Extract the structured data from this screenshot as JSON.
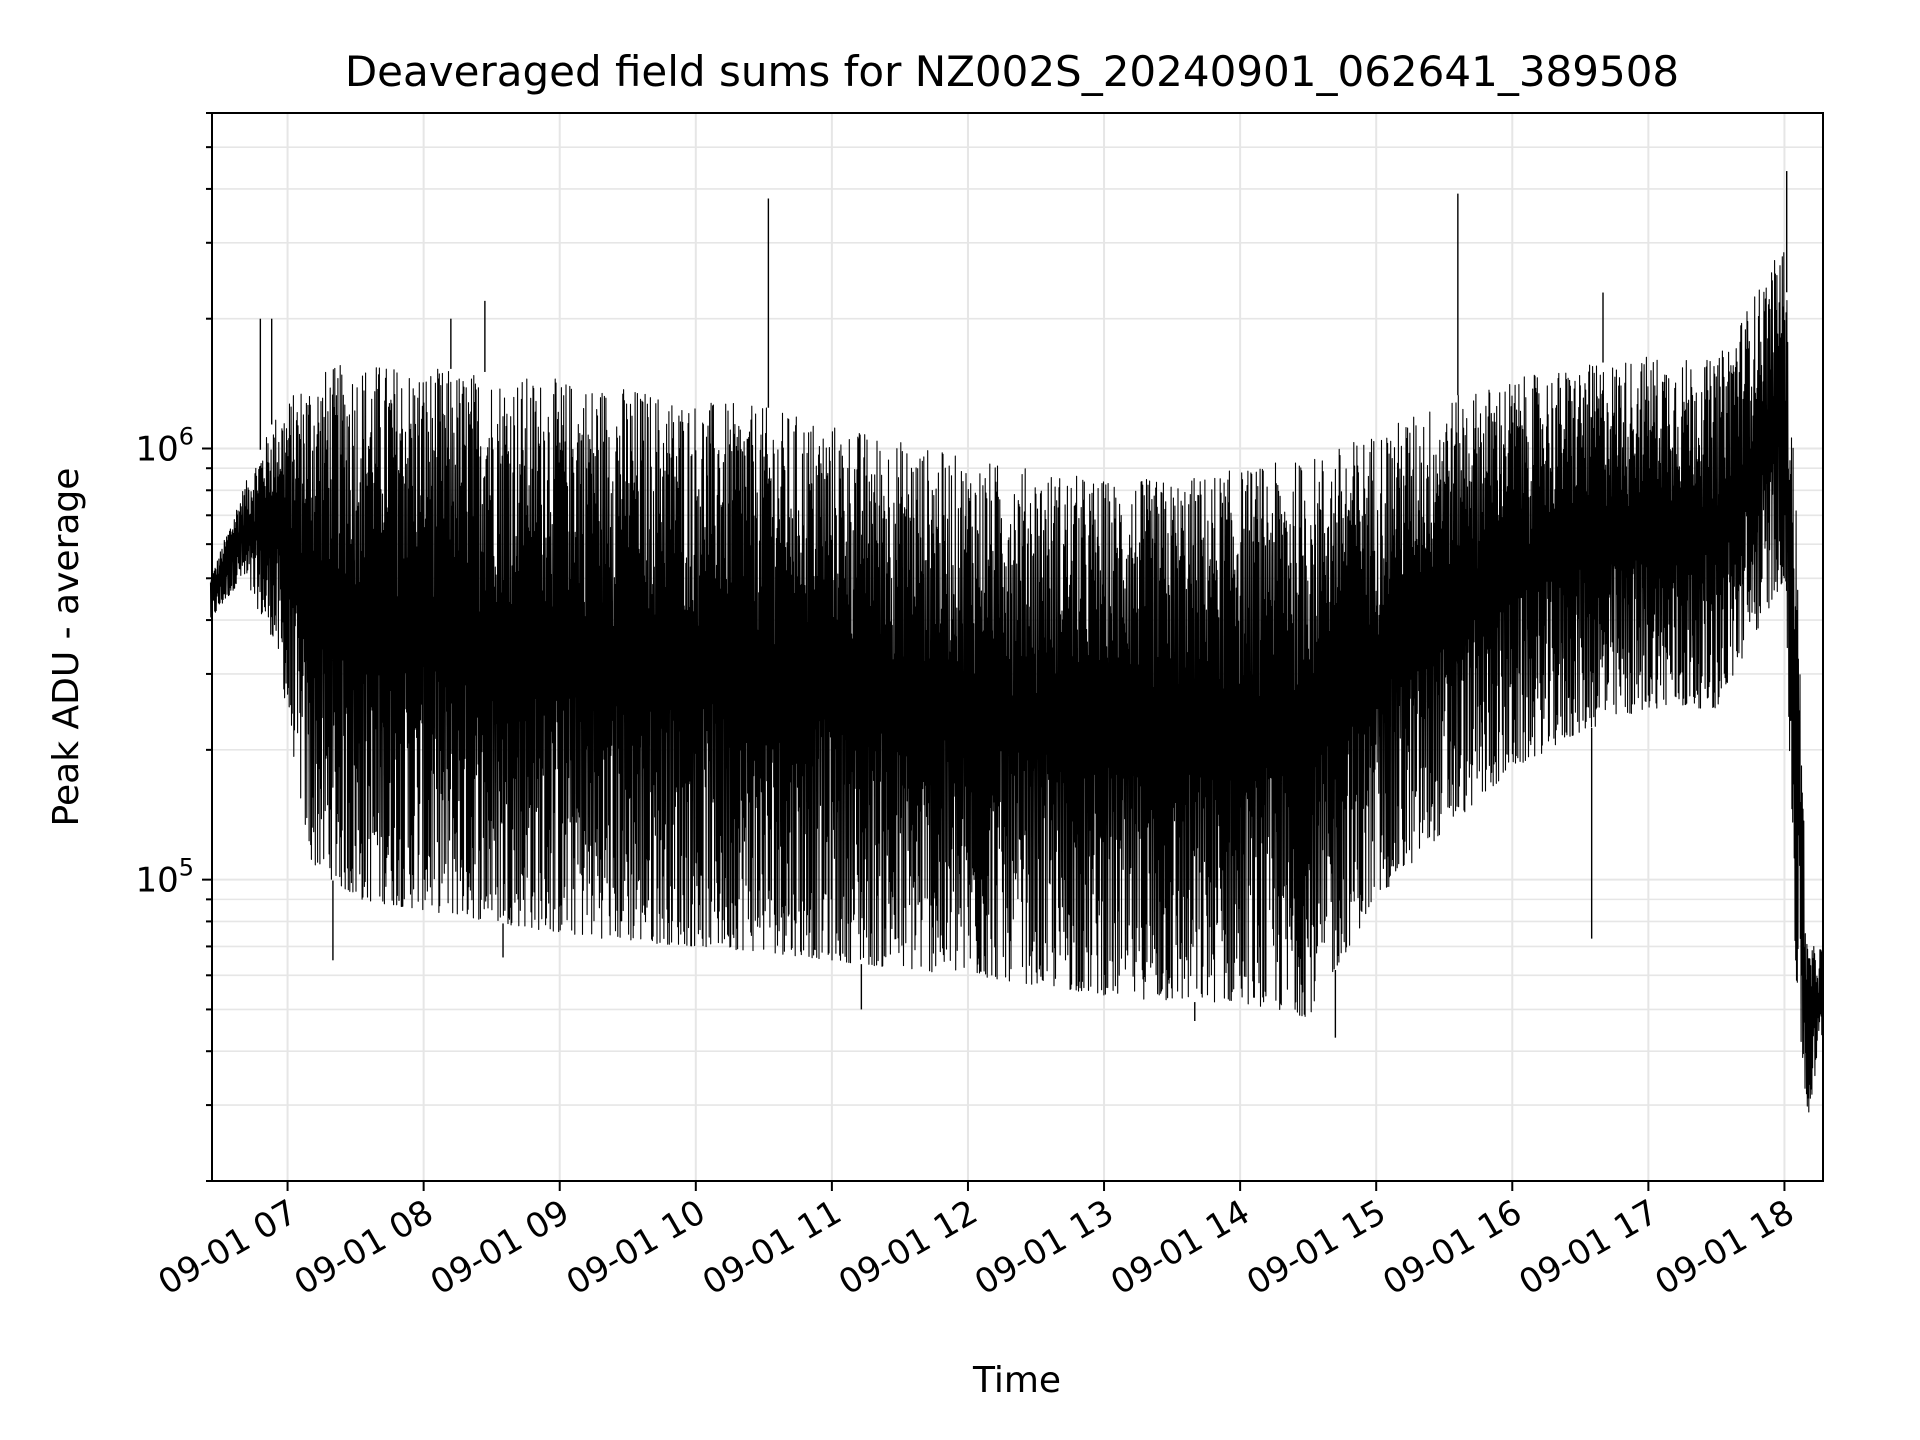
{
  "chart_data": {
    "type": "line",
    "title": "Deaveraged field sums for NZ002S_20240901_062641_389508",
    "xlabel": "Time",
    "ylabel": "Peak ADU - average",
    "y_scale": "log",
    "ylim": [
      20000,
      6000000
    ],
    "xlim": [
      "2024-09-01 06:26:41",
      "2024-09-01 18:17:00"
    ],
    "x_tick_labels": [
      "09-01 07",
      "09-01 08",
      "09-01 09",
      "09-01 10",
      "09-01 11",
      "09-01 12",
      "09-01 13",
      "09-01 14",
      "09-01 15",
      "09-01 16",
      "09-01 17",
      "09-01 18"
    ],
    "y_tick_labels": [
      {
        "base": "10",
        "exp": "5"
      },
      {
        "base": "10",
        "exp": "6"
      }
    ],
    "grid": true,
    "line_color": "#000000",
    "grid_color": "#e6e6e6",
    "series": [
      {
        "x": [
          "2024-09-01 06:26",
          "2024-09-01 06:40",
          "2024-09-01 06:55",
          "2024-09-01 07:10",
          "2024-09-01 07:30",
          "2024-09-01 08:00",
          "2024-09-01 08:30",
          "2024-09-01 09:00",
          "2024-09-01 09:30",
          "2024-09-01 10:00",
          "2024-09-01 10:30",
          "2024-09-01 11:00",
          "2024-09-01 11:30",
          "2024-09-01 12:00",
          "2024-09-01 12:30",
          "2024-09-01 13:00",
          "2024-09-01 13:30",
          "2024-09-01 14:00",
          "2024-09-01 14:30",
          "2024-09-01 15:00",
          "2024-09-01 15:30",
          "2024-09-01 16:00",
          "2024-09-01 16:30",
          "2024-09-01 17:00",
          "2024-09-01 17:30",
          "2024-09-01 18:00",
          "2024-09-01 18:05",
          "2024-09-01 18:10",
          "2024-09-01 18:17"
        ],
        "upper": [
          500000,
          800000,
          1200000,
          1500000,
          1600000,
          1550000,
          1500000,
          1450000,
          1400000,
          1300000,
          1250000,
          1150000,
          1050000,
          950000,
          900000,
          850000,
          850000,
          900000,
          950000,
          1100000,
          1300000,
          1450000,
          1550000,
          1650000,
          1600000,
          3000000,
          800000,
          70000,
          70000
        ],
        "lower": [
          400000,
          500000,
          350000,
          110000,
          90000,
          85000,
          80000,
          75000,
          72000,
          70000,
          68000,
          65000,
          62000,
          60000,
          57000,
          54000,
          52000,
          52000,
          48000,
          90000,
          130000,
          180000,
          220000,
          250000,
          250000,
          500000,
          60000,
          27000,
          45000
        ]
      }
    ],
    "spikes": [
      {
        "x": "2024-09-01 06:48",
        "y": 2000000
      },
      {
        "x": "2024-09-01 06:53",
        "y": 2000000
      },
      {
        "x": "2024-09-01 08:12",
        "y": 2000000
      },
      {
        "x": "2024-09-01 08:27",
        "y": 2200000
      },
      {
        "x": "2024-09-01 10:32",
        "y": 3800000
      },
      {
        "x": "2024-09-01 15:36",
        "y": 3900000
      },
      {
        "x": "2024-09-01 16:40",
        "y": 2300000
      },
      {
        "x": "2024-09-01 18:01",
        "y": 4400000
      }
    ],
    "dips": [
      {
        "x": "2024-09-01 07:20",
        "y": 65000
      },
      {
        "x": "2024-09-01 08:35",
        "y": 66000
      },
      {
        "x": "2024-09-01 11:13",
        "y": 50000
      },
      {
        "x": "2024-09-01 13:40",
        "y": 47000
      },
      {
        "x": "2024-09-01 14:42",
        "y": 43000
      },
      {
        "x": "2024-09-01 16:35",
        "y": 73000
      }
    ]
  }
}
